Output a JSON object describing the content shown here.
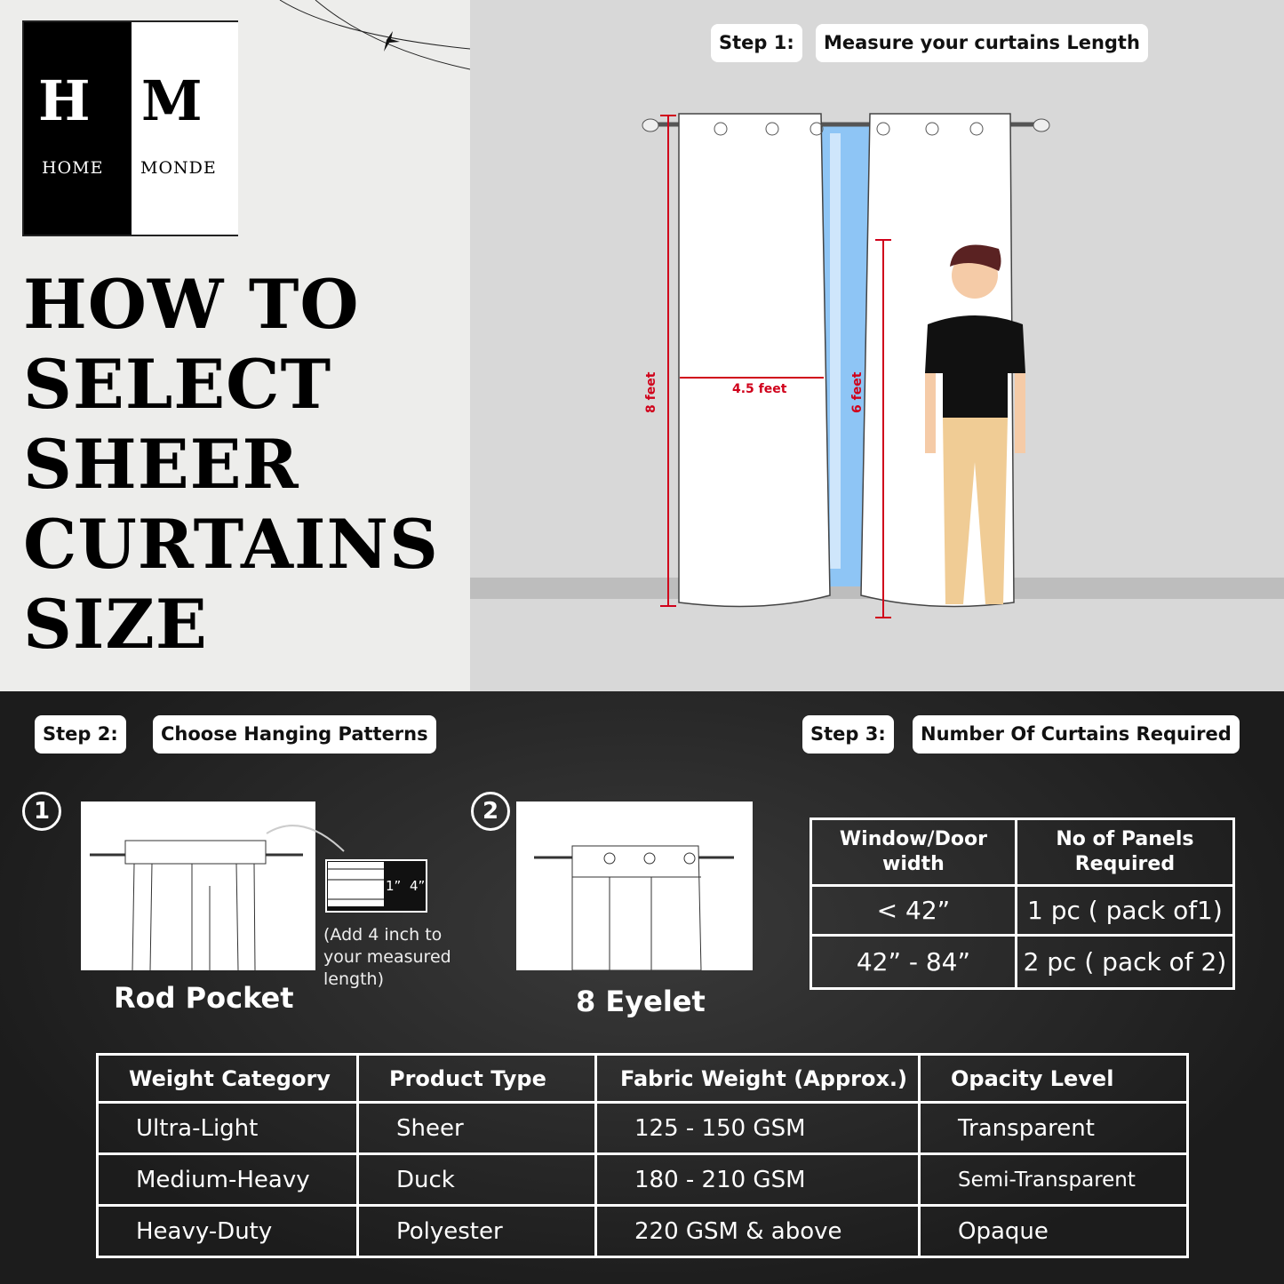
{
  "brand": {
    "initial_left": "H",
    "initial_right": "M",
    "word_left": "HOME",
    "word_right": "MONDE"
  },
  "title_lines": [
    "HOW TO",
    "SELECT",
    "SHEER",
    "CURTAINS",
    "SIZE"
  ],
  "step1": {
    "label": "Step 1:",
    "text": "Measure your curtains Length",
    "dims": {
      "height": "8 feet",
      "width": "4.5 feet",
      "person": "6 feet"
    }
  },
  "step2": {
    "label": "Step 2:",
    "text": "Choose Hanging Patterns",
    "options": [
      {
        "number": "1",
        "name": "Rod Pocket",
        "note": "(Add 4 inch to your measured length)",
        "detail_small": "1”",
        "detail_big": "4”"
      },
      {
        "number": "2",
        "name": "8 Eyelet"
      }
    ]
  },
  "step3": {
    "label": "Step 3:",
    "text": "Number Of Curtains Required",
    "headers": [
      "Window/Door width",
      "No of Panels Required"
    ],
    "rows": [
      [
        "< 42”",
        "1 pc ( pack of1)"
      ],
      [
        "42” - 84”",
        "2 pc ( pack of 2)"
      ]
    ]
  },
  "weights": {
    "headers": [
      "Weight Category",
      "Product Type",
      "Fabric Weight (Approx.)",
      "Opacity Level"
    ],
    "rows": [
      [
        "Ultra-Light",
        "Sheer",
        "125 - 150 GSM",
        "Transparent"
      ],
      [
        "Medium-Heavy",
        "Duck",
        "180 - 210 GSM",
        "Semi-Transparent"
      ],
      [
        "Heavy-Duty",
        "Polyester",
        "220  GSM & above",
        "Opaque"
      ]
    ]
  },
  "colors": {
    "measure": "#d0021b",
    "window": "#8ec5f5"
  }
}
